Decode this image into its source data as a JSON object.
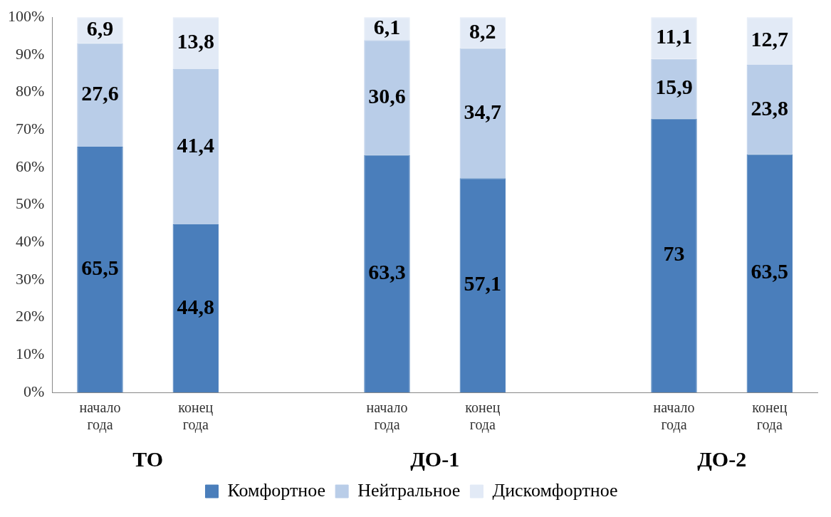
{
  "chart_data": {
    "type": "bar",
    "stacked": true,
    "categories": [
      "начало года",
      "конец года",
      null,
      "начало года",
      "конец года",
      null,
      "начало года",
      "конец года"
    ],
    "series": [
      {
        "name": "Комфортное",
        "color": "#4a7ebb",
        "values": [
          65.5,
          44.8,
          null,
          63.3,
          57.1,
          null,
          73,
          63.5
        ],
        "value_labels": [
          "65,5",
          "44,8",
          null,
          "63,3",
          "57,1",
          null,
          "73",
          "63,5"
        ]
      },
      {
        "name": "Нейтральное",
        "color": "#b9cde8",
        "values": [
          27.6,
          41.4,
          null,
          30.6,
          34.7,
          null,
          15.9,
          23.8
        ],
        "value_labels": [
          "27,6",
          "41,4",
          null,
          "30,6",
          "34,7",
          null,
          "15,9",
          "23,8"
        ]
      },
      {
        "name": "Дискомфортное",
        "color": "#e2eaf6",
        "values": [
          6.9,
          13.8,
          null,
          6.1,
          8.2,
          null,
          11.1,
          12.7
        ],
        "value_labels": [
          "6,9",
          "13,8",
          null,
          "6,1",
          "8,2",
          null,
          "11,1",
          "12,7"
        ]
      }
    ],
    "ylim": [
      0,
      100
    ],
    "yticks": [
      {
        "value": 0,
        "label": "0%"
      },
      {
        "value": 10,
        "label": "10%"
      },
      {
        "value": 20,
        "label": "20%"
      },
      {
        "value": 30,
        "label": "30%"
      },
      {
        "value": 40,
        "label": "40%"
      },
      {
        "value": 50,
        "label": "50%"
      },
      {
        "value": 60,
        "label": "60%"
      },
      {
        "value": 70,
        "label": "70%"
      },
      {
        "value": 80,
        "label": "80%"
      },
      {
        "value": 90,
        "label": "90%"
      },
      {
        "value": 100,
        "label": "100%"
      }
    ],
    "annotations": [
      "ТО",
      "ДО-1",
      "ДО-2"
    ],
    "grid": false,
    "legend": "bottom"
  }
}
